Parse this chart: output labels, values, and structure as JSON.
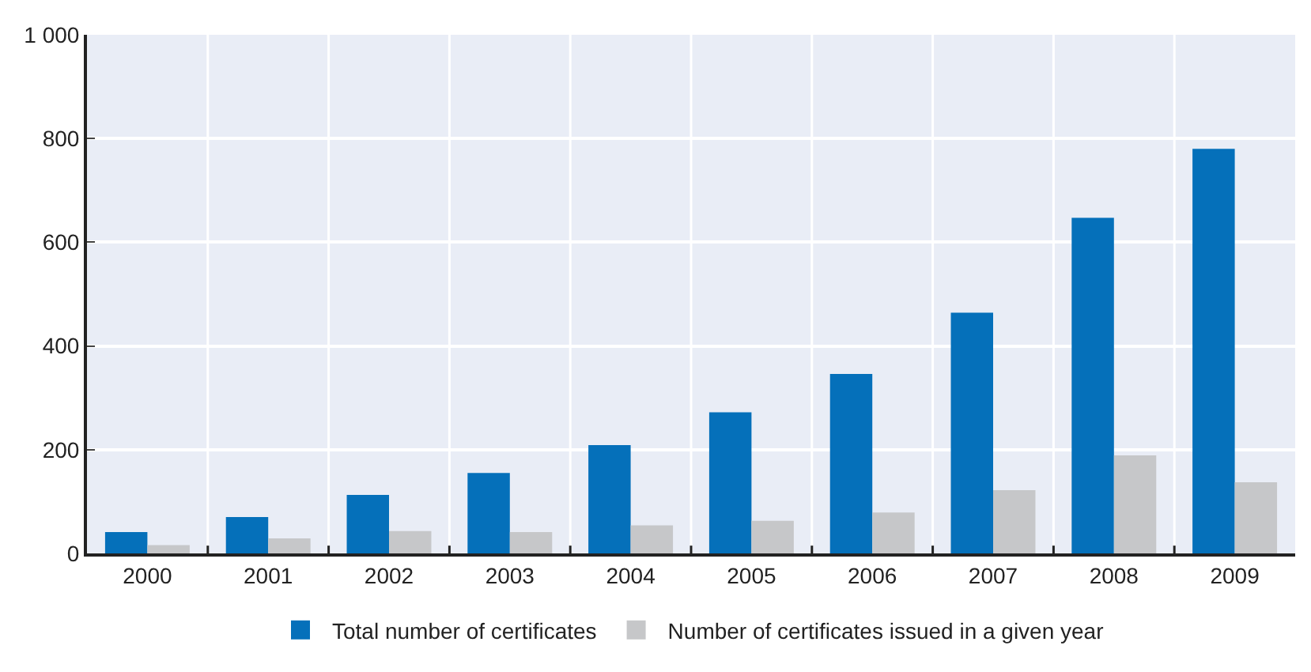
{
  "chart_data": {
    "type": "bar",
    "categories": [
      "2000",
      "2001",
      "2002",
      "2003",
      "2004",
      "2005",
      "2006",
      "2007",
      "2008",
      "2009"
    ],
    "series": [
      {
        "name": "Total number of certificates",
        "color": "#0570ba",
        "values": [
          41,
          70,
          113,
          155,
          209,
          272,
          346,
          464,
          647,
          780
        ]
      },
      {
        "name": "Number of certificates issued in a given year",
        "color": "#c6c7c9",
        "values": [
          16,
          29,
          43,
          41,
          54,
          63,
          79,
          122,
          189,
          137
        ]
      }
    ],
    "ylim": [
      0,
      1000
    ],
    "yticks": [
      0,
      200,
      400,
      600,
      800,
      {
        "value": 1000,
        "label": "1 000"
      }
    ],
    "grid": true,
    "legend": "bottom"
  }
}
